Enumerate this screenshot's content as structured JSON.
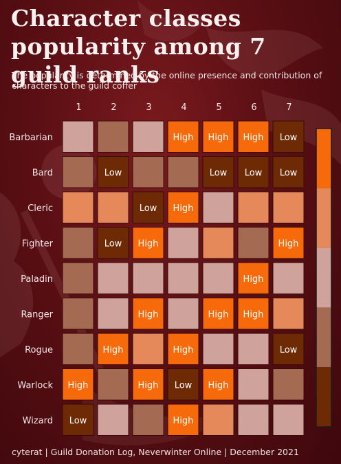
{
  "title": "Character classes popularity among 7 guild ranks",
  "subtitle": "The popularity is determined by the online presence and contribution of characters to the guild coffer",
  "footer": "cyterat | Guild Donation Log, Neverwinter Online | December 2021",
  "colors": {
    "level_1": "#6e2a05",
    "level_2": "#a56a52",
    "level_3": "#cfa29b",
    "level_4": "#e5895a",
    "level_5": "#f76a0b",
    "border": "#3a0a0a",
    "legend_border": "#1a1a1a"
  },
  "chart_data": {
    "type": "heatmap",
    "x_categories": [
      "1",
      "2",
      "3",
      "4",
      "5",
      "6",
      "7"
    ],
    "y_categories": [
      "Barbarian",
      "Bard",
      "Cleric",
      "Fighter",
      "Paladin",
      "Ranger",
      "Rogue",
      "Warlock",
      "Wizard"
    ],
    "levels": [
      1,
      2,
      3,
      4,
      5
    ],
    "level_labels": {
      "1": "Low",
      "5": "High"
    },
    "values": [
      [
        3,
        2,
        3,
        5,
        5,
        5,
        1
      ],
      [
        2,
        1,
        2,
        2,
        1,
        1,
        1
      ],
      [
        4,
        4,
        1,
        5,
        3,
        4,
        4
      ],
      [
        2,
        1,
        5,
        3,
        4,
        2,
        5
      ],
      [
        2,
        3,
        3,
        3,
        3,
        5,
        3
      ],
      [
        2,
        3,
        5,
        3,
        5,
        5,
        4
      ],
      [
        2,
        5,
        4,
        5,
        3,
        3,
        1
      ],
      [
        5,
        2,
        5,
        1,
        5,
        3,
        2
      ],
      [
        1,
        3,
        2,
        5,
        4,
        3,
        3
      ]
    ],
    "legend": "right, continuous color bar"
  }
}
